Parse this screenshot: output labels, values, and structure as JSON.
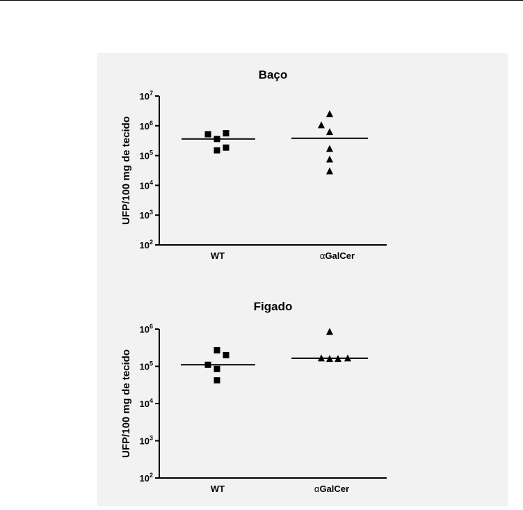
{
  "chart_data": [
    {
      "type": "scatter",
      "title": "Baço",
      "ylabel": "UFP/100 mg de tecido",
      "xlabel": "",
      "y_scale": "log",
      "ylim": [
        100,
        10000000
      ],
      "y_ticks": [
        {
          "base": "10",
          "exp": "2"
        },
        {
          "base": "10",
          "exp": "3"
        },
        {
          "base": "10",
          "exp": "4"
        },
        {
          "base": "10",
          "exp": "5"
        },
        {
          "base": "10",
          "exp": "6"
        },
        {
          "base": "10",
          "exp": "7"
        }
      ],
      "categories": [
        {
          "prefix": "",
          "label": "WT"
        },
        {
          "prefix": "α",
          "label": "GalCer"
        }
      ],
      "series": [
        {
          "marker": "square",
          "values": [
            520000,
            560000,
            360000,
            150000,
            185000
          ],
          "median": 360000
        },
        {
          "marker": "triangle",
          "values": [
            2500000,
            1050000,
            620000,
            170000,
            75000,
            30000
          ],
          "median": 380000
        }
      ]
    },
    {
      "type": "scatter",
      "title": "Figado",
      "ylabel": "UFP/100 mg de tecido",
      "xlabel": "",
      "y_scale": "log",
      "ylim": [
        100,
        1000000
      ],
      "y_ticks": [
        {
          "base": "10",
          "exp": "2"
        },
        {
          "base": "10",
          "exp": "3"
        },
        {
          "base": "10",
          "exp": "4"
        },
        {
          "base": "10",
          "exp": "5"
        },
        {
          "base": "10",
          "exp": "6"
        }
      ],
      "categories": [
        {
          "prefix": "",
          "label": "WT"
        },
        {
          "prefix": "α",
          "label": "GalCer"
        }
      ],
      "series": [
        {
          "marker": "square",
          "values": [
            270000,
            200000,
            110000,
            85000,
            42000
          ],
          "median": 110000
        },
        {
          "marker": "triangle",
          "values": [
            850000,
            165000,
            160000,
            160000,
            165000
          ],
          "median": 165000
        }
      ]
    }
  ]
}
